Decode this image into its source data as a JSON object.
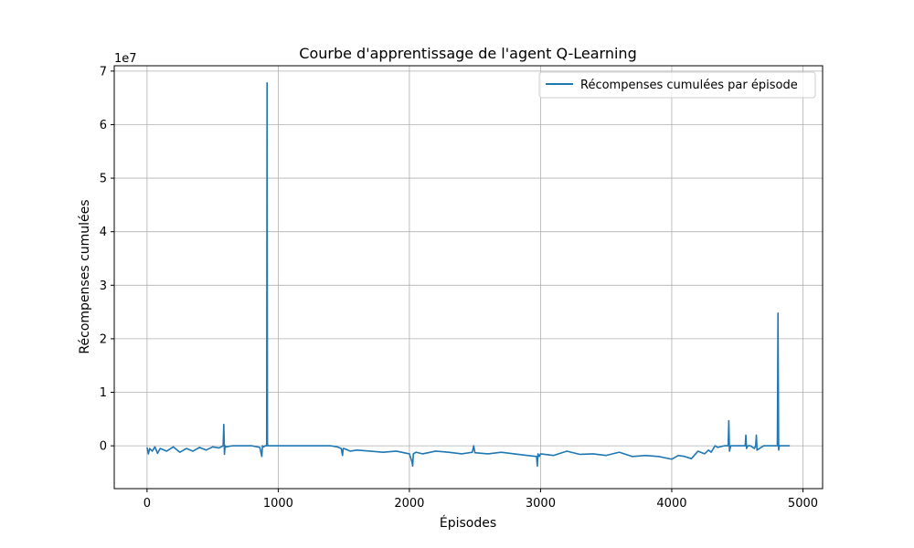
{
  "chart_data": {
    "type": "line",
    "title": "Courbe d'apprentissage de l'agent Q-Learning",
    "xlabel": "Épisodes",
    "ylabel": "Récompenses cumulées",
    "y_offset_label": "1e7",
    "xlim": [
      -250,
      5150
    ],
    "ylim": [
      -0.8,
      7.1
    ],
    "y_unit_multiplier": 10000000,
    "x_ticks": [
      0,
      1000,
      2000,
      3000,
      4000,
      5000
    ],
    "x_tick_labels": [
      "0",
      "1000",
      "2000",
      "3000",
      "4000",
      "5000"
    ],
    "y_ticks": [
      0,
      1,
      2,
      3,
      4,
      5,
      6,
      7
    ],
    "y_tick_labels": [
      "0",
      "1",
      "2",
      "3",
      "4",
      "5",
      "6",
      "7"
    ],
    "grid": true,
    "legend_position": "top-right",
    "series": [
      {
        "name": "Récompenses cumulées par épisode",
        "color": "#1f77b4",
        "x": [
          0,
          10,
          20,
          40,
          60,
          80,
          100,
          150,
          200,
          250,
          300,
          350,
          400,
          450,
          500,
          550,
          580,
          585,
          590,
          595,
          600,
          650,
          700,
          800,
          860,
          875,
          880,
          890,
          900,
          910,
          912,
          915,
          918,
          920,
          925,
          930,
          1000,
          1100,
          1200,
          1300,
          1400,
          1450,
          1480,
          1490,
          1495,
          1500,
          1550,
          1600,
          1700,
          1800,
          1900,
          2000,
          2020,
          2025,
          2030,
          2050,
          2100,
          2200,
          2300,
          2400,
          2480,
          2490,
          2500,
          2600,
          2700,
          2800,
          2900,
          2970,
          2975,
          2980,
          2990,
          3000,
          3100,
          3200,
          3300,
          3400,
          3500,
          3600,
          3700,
          3800,
          3900,
          4000,
          4050,
          4100,
          4150,
          4200,
          4250,
          4280,
          4300,
          4330,
          4350,
          4400,
          4430,
          4435,
          4440,
          4450,
          4500,
          4560,
          4565,
          4570,
          4580,
          4600,
          4630,
          4640,
          4645,
          4650,
          4700,
          4750,
          4800,
          4805,
          4810,
          4815,
          4820,
          4850,
          4900
        ],
        "y": [
          -0.03,
          -0.15,
          -0.05,
          -0.1,
          -0.02,
          -0.14,
          -0.05,
          -0.1,
          -0.02,
          -0.12,
          -0.05,
          -0.1,
          -0.03,
          -0.08,
          -0.02,
          -0.04,
          0.0,
          0.4,
          -0.16,
          0.0,
          -0.02,
          0.0,
          0.0,
          0.0,
          -0.03,
          -0.2,
          0.0,
          -0.02,
          0.0,
          0.0,
          0.02,
          6.78,
          0.05,
          0.0,
          0.0,
          0.0,
          0.0,
          0.0,
          0.0,
          0.0,
          0.0,
          -0.02,
          -0.05,
          -0.18,
          -0.05,
          -0.05,
          -0.1,
          -0.08,
          -0.1,
          -0.12,
          -0.1,
          -0.15,
          -0.3,
          -0.38,
          -0.15,
          -0.12,
          -0.15,
          -0.1,
          -0.12,
          -0.15,
          -0.12,
          0.0,
          -0.13,
          -0.15,
          -0.12,
          -0.15,
          -0.18,
          -0.2,
          -0.38,
          -0.15,
          -0.2,
          -0.15,
          -0.18,
          -0.1,
          -0.16,
          -0.15,
          -0.18,
          -0.12,
          -0.2,
          -0.18,
          -0.2,
          -0.25,
          -0.18,
          -0.2,
          -0.24,
          -0.1,
          -0.15,
          -0.08,
          -0.12,
          0.0,
          -0.03,
          0.0,
          0.0,
          0.47,
          -0.1,
          0.0,
          0.0,
          0.0,
          0.2,
          -0.05,
          0.0,
          0.0,
          -0.05,
          0.0,
          0.2,
          -0.08,
          0.0,
          0.0,
          0.0,
          0.0,
          2.48,
          -0.08,
          0.0,
          0.0,
          0.0
        ]
      }
    ]
  }
}
